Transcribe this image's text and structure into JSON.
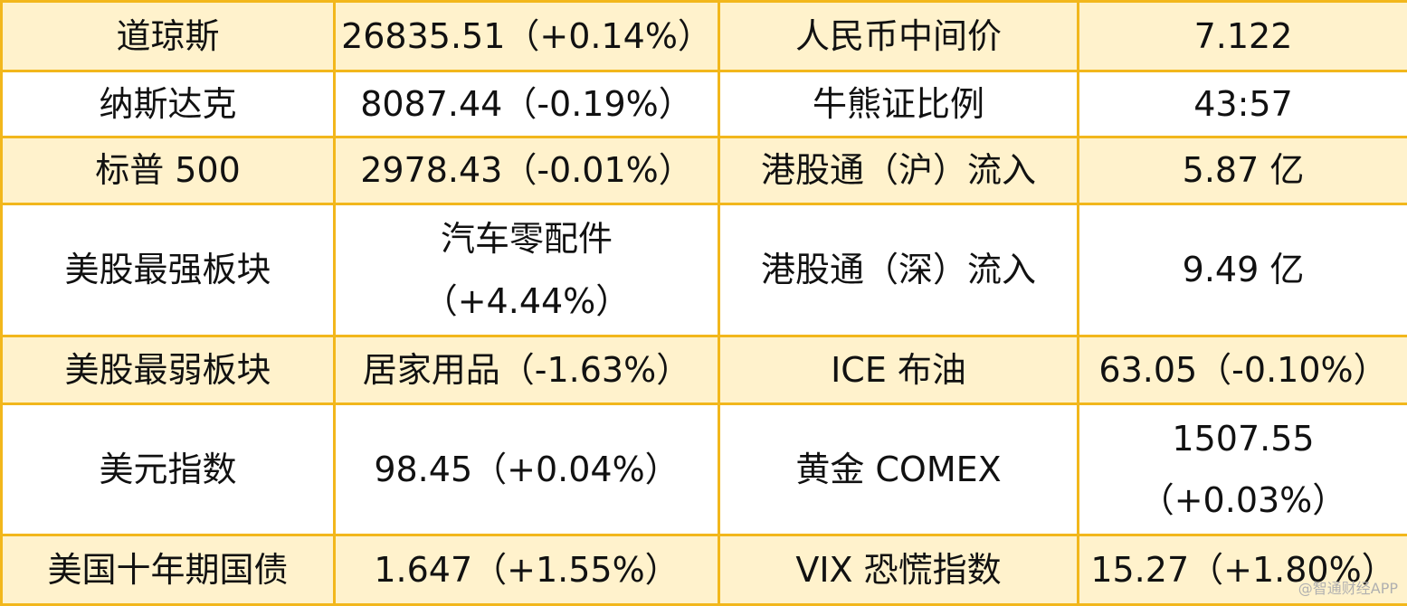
{
  "table": {
    "rows": [
      [
        "道琼斯",
        "26835.51（+0.14%）",
        "人民币中间价",
        "7.122"
      ],
      [
        "纳斯达克",
        "8087.44（-0.19%）",
        "牛熊证比例",
        "43:57"
      ],
      [
        "标普 500",
        "2978.43（-0.01%）",
        "港股通（沪）流入",
        "5.87 亿"
      ],
      [
        "美股最强板块",
        [
          "汽车零配件",
          "（+4.44%）"
        ],
        "港股通（深）流入",
        "9.49 亿"
      ],
      [
        "美股最弱板块",
        "居家用品（-1.63%）",
        "ICE 布油",
        "63.05（-0.10%）"
      ],
      [
        "美元指数",
        "98.45（+0.04%）",
        "黄金 COMEX",
        [
          "1507.55",
          "（+0.03%）"
        ]
      ],
      [
        "美国十年期国债",
        "1.647（+1.55%）",
        "VIX 恐慌指数",
        "15.27（+1.80%）"
      ]
    ]
  },
  "watermark": "@智通财经APP"
}
